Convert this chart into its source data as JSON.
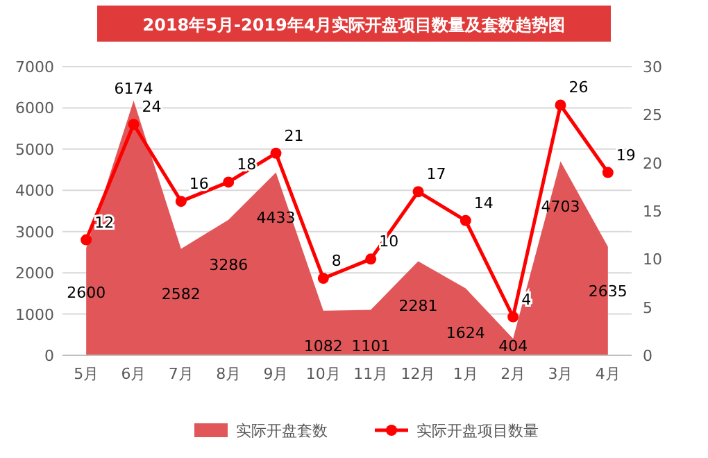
{
  "chart_data": {
    "type": "area",
    "title": "2018年5月-2019年4月实际开盘项目数量及套数趋势图",
    "categories": [
      "5月",
      "6月",
      "7月",
      "8月",
      "9月",
      "10月",
      "11月",
      "12月",
      "1月",
      "2月",
      "3月",
      "4月"
    ],
    "series": [
      {
        "name": "实际开盘套数",
        "type": "area",
        "color": "#e15759",
        "values": [
          2600,
          6174,
          2582,
          3286,
          4433,
          1082,
          1101,
          2281,
          1624,
          404,
          4703,
          2635
        ]
      },
      {
        "name": "实际开盘项目数量",
        "type": "line",
        "axis": "y2",
        "color": "#ff0000",
        "marker": "circle",
        "values": [
          12,
          24,
          16,
          18,
          21,
          8,
          10,
          17,
          14,
          4,
          26,
          19
        ]
      }
    ],
    "ylim": [
      0,
      7000
    ],
    "yticks": [
      0,
      1000,
      2000,
      3000,
      4000,
      5000,
      6000,
      7000
    ],
    "y2lim": [
      0,
      30
    ],
    "y2ticks": [
      0,
      5,
      10,
      15,
      20,
      25,
      30
    ],
    "grid": "y",
    "legend": "bottom",
    "data_labels": true
  }
}
